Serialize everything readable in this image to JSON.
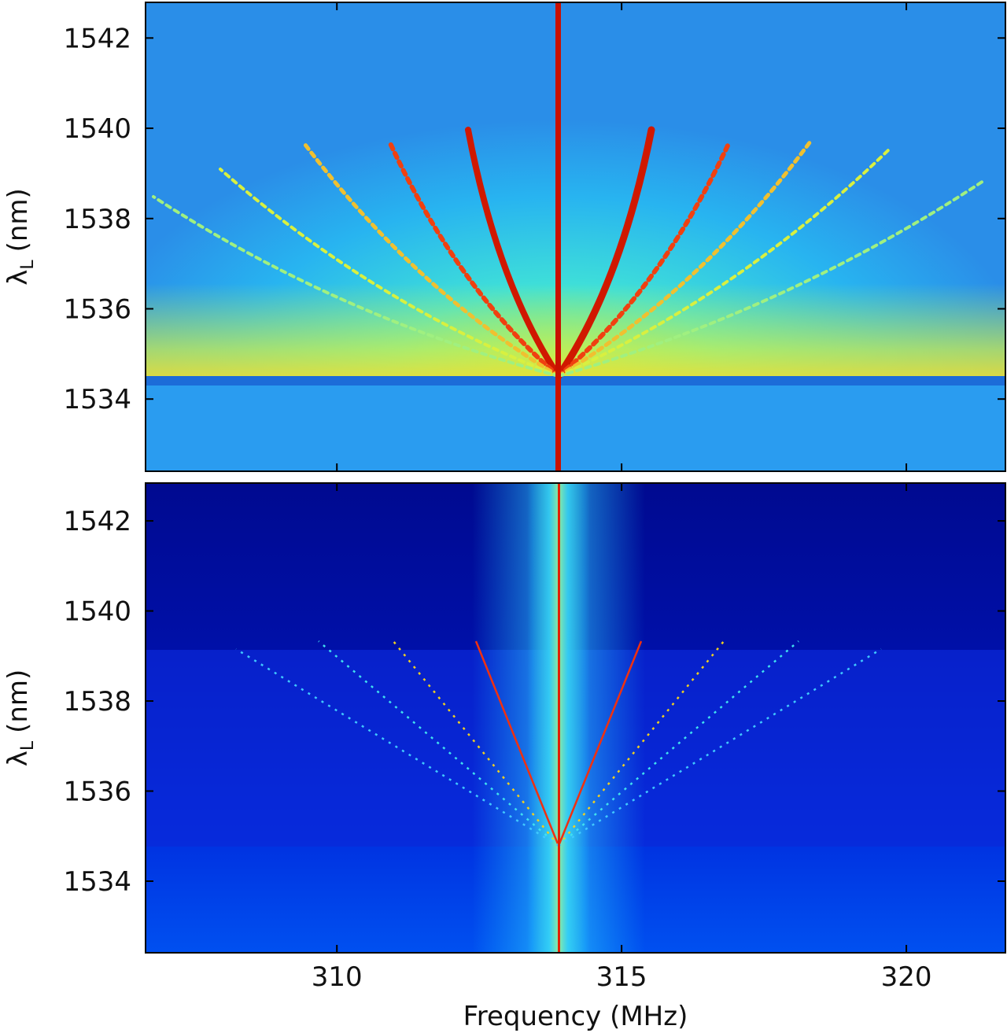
{
  "chart_data": [
    {
      "type": "heatmap",
      "ylabel": {
        "symbol": "λ",
        "subscript": "L",
        "unit": "(nm)"
      },
      "xlim": [
        306.64,
        321.74
      ],
      "ylim": [
        1532.4,
        1542.79
      ],
      "yticks": [
        1534,
        1536,
        1538,
        1540,
        1542
      ]
    },
    {
      "type": "heatmap",
      "xlabel": "Frequency (MHz)",
      "ylabel": {
        "symbol": "λ",
        "subscript": "L",
        "unit": "(nm)"
      },
      "xlim": [
        306.64,
        321.74
      ],
      "ylim": [
        1532.41,
        1542.84
      ],
      "xticks": [
        310,
        315,
        320
      ],
      "yticks": [
        1534,
        1536,
        1538,
        1540,
        1542
      ]
    }
  ]
}
